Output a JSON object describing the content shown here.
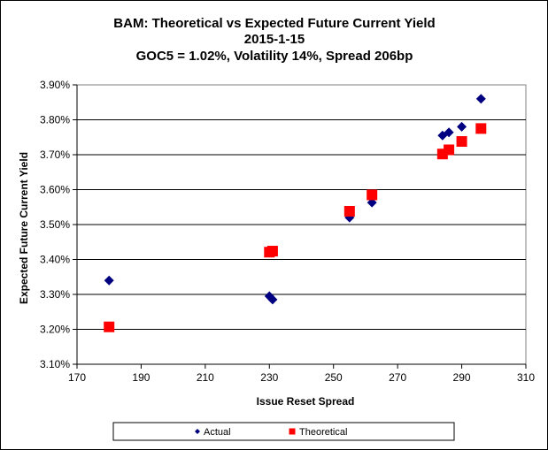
{
  "chart_data": {
    "type": "scatter",
    "title": "BAM: Theoretical vs Expected Future Current Yield",
    "subtitle": "2015-1-15",
    "subtitle2": "GOC5 = 1.02%, Volatility 14%, Spread 206bp",
    "xlabel": "Issue Reset Spread",
    "ylabel": "Expected Future Current Yield",
    "xlim": [
      170,
      310
    ],
    "ylim": [
      3.1,
      3.9
    ],
    "x_ticks": [
      170,
      190,
      210,
      230,
      250,
      270,
      290,
      310
    ],
    "x_tick_labels": [
      "170",
      "190",
      "210",
      "230",
      "250",
      "270",
      "290",
      "310"
    ],
    "y_ticks": [
      3.1,
      3.2,
      3.3,
      3.4,
      3.5,
      3.6,
      3.7,
      3.8,
      3.9
    ],
    "y_tick_labels": [
      "3.10%",
      "3.20%",
      "3.30%",
      "3.40%",
      "3.50%",
      "3.60%",
      "3.70%",
      "3.80%",
      "3.90%"
    ],
    "grid": "horizontal",
    "legend_position": "bottom",
    "series": [
      {
        "name": "Actual",
        "marker": "diamond",
        "color": "#000080",
        "points": [
          {
            "x": 180,
            "y": 3.34
          },
          {
            "x": 230,
            "y": 3.295
          },
          {
            "x": 231,
            "y": 3.285
          },
          {
            "x": 255,
            "y": 3.52
          },
          {
            "x": 262,
            "y": 3.563
          },
          {
            "x": 284,
            "y": 3.755
          },
          {
            "x": 286,
            "y": 3.764
          },
          {
            "x": 290,
            "y": 3.78
          },
          {
            "x": 296,
            "y": 3.86
          }
        ]
      },
      {
        "name": "Theoretical",
        "marker": "square",
        "color": "#ff0000",
        "points": [
          {
            "x": 180,
            "y": 3.207
          },
          {
            "x": 230,
            "y": 3.421
          },
          {
            "x": 231,
            "y": 3.424
          },
          {
            "x": 255,
            "y": 3.538
          },
          {
            "x": 262,
            "y": 3.585
          },
          {
            "x": 284,
            "y": 3.702
          },
          {
            "x": 286,
            "y": 3.714
          },
          {
            "x": 290,
            "y": 3.738
          },
          {
            "x": 296,
            "y": 3.775
          }
        ]
      }
    ]
  }
}
